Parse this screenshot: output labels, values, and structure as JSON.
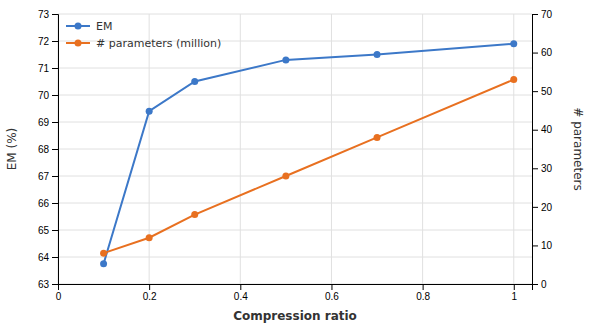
{
  "chart_data": {
    "type": "line",
    "xlabel": "Compression ratio",
    "ylabel": "EM (%)",
    "y2label": "# parameters",
    "x": [
      0.1,
      0.2,
      0.3,
      0.5,
      0.7,
      1.0
    ],
    "series": [
      {
        "name": "EM",
        "color": "#3C78C8",
        "marker": "circle",
        "values": [
          63.75,
          69.4,
          70.5,
          71.3,
          71.5,
          71.9
        ]
      },
      {
        "name": "# parameters (million)",
        "color": "#E87020",
        "marker": "circle",
        "axis": "y2",
        "values": [
          8.0,
          12.0,
          18.0,
          28.0,
          38.0,
          53.0
        ]
      }
    ],
    "xlim": [
      0,
      1.04
    ],
    "xticks": [
      0,
      0.2,
      0.4,
      0.6,
      0.8,
      1
    ],
    "ylim": [
      63,
      73
    ],
    "yticks": [
      63,
      64,
      65,
      66,
      67,
      68,
      69,
      70,
      71,
      72,
      73
    ],
    "y2lim": [
      0,
      70
    ],
    "y2ticks": [
      0,
      10,
      20,
      30,
      40,
      50,
      60,
      70
    ],
    "grid": true,
    "legend": "upper left"
  }
}
